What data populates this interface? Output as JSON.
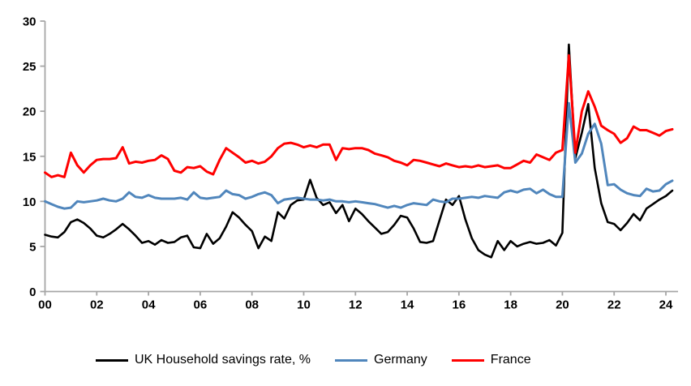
{
  "chart_data": {
    "type": "line",
    "x_axis": {
      "frequency": "quarterly",
      "start": "2000 Q1",
      "end": "2024 Q2",
      "points": 98,
      "tick_labels": [
        "00",
        "02",
        "04",
        "06",
        "08",
        "10",
        "12",
        "14",
        "16",
        "18",
        "20",
        "22",
        "24"
      ],
      "tick_every_points": 8
    },
    "ylim": [
      0,
      30
    ],
    "y_ticks": [
      "0",
      "5",
      "10",
      "15",
      "20",
      "25",
      "30"
    ],
    "grid": false,
    "legend_position": "bottom",
    "axis_color": "#a6a6a6",
    "tick_label_color": "#000000",
    "background_color": "#ffffff",
    "series": [
      {
        "name": "UK Household savings rate, %",
        "color": "#000000",
        "width": 2.6,
        "values": [
          6.3,
          6.1,
          6.0,
          6.6,
          7.7,
          8.0,
          7.6,
          7.0,
          6.2,
          6.0,
          6.4,
          6.9,
          7.5,
          6.9,
          6.2,
          5.4,
          5.6,
          5.2,
          5.7,
          5.4,
          5.5,
          6.0,
          6.2,
          4.9,
          4.8,
          6.4,
          5.3,
          5.9,
          7.2,
          8.8,
          8.2,
          7.4,
          6.7,
          4.8,
          6.1,
          5.6,
          8.8,
          8.1,
          9.6,
          10.1,
          10.2,
          12.4,
          10.4,
          9.6,
          9.9,
          8.7,
          9.6,
          7.8,
          9.2,
          8.6,
          7.8,
          7.1,
          6.4,
          6.6,
          7.4,
          8.4,
          8.2,
          7.0,
          5.5,
          5.4,
          5.6,
          7.9,
          10.2,
          9.6,
          10.6,
          8.0,
          5.9,
          4.6,
          4.1,
          3.8,
          5.6,
          4.6,
          5.6,
          5.0,
          5.3,
          5.5,
          5.3,
          5.4,
          5.7,
          5.1,
          6.5,
          27.4,
          14.8,
          17.6,
          20.8,
          13.7,
          9.8,
          7.7,
          7.5,
          6.8,
          7.6,
          8.6,
          7.9,
          9.2,
          9.7,
          10.2,
          10.6,
          11.2
        ]
      },
      {
        "name": "Germany",
        "color": "#5086bc",
        "width": 3,
        "values": [
          10.0,
          9.7,
          9.4,
          9.2,
          9.3,
          10.0,
          9.9,
          10.0,
          10.1,
          10.3,
          10.1,
          10.0,
          10.3,
          11.0,
          10.5,
          10.4,
          10.7,
          10.4,
          10.3,
          10.3,
          10.3,
          10.4,
          10.2,
          11.0,
          10.4,
          10.3,
          10.4,
          10.5,
          11.2,
          10.8,
          10.7,
          10.3,
          10.5,
          10.8,
          11.0,
          10.7,
          9.8,
          10.2,
          10.3,
          10.4,
          10.3,
          10.2,
          10.2,
          10.1,
          10.2,
          10.0,
          10.0,
          9.9,
          10.0,
          9.9,
          9.8,
          9.7,
          9.5,
          9.3,
          9.5,
          9.3,
          9.6,
          9.8,
          9.7,
          9.6,
          10.2,
          10.0,
          9.9,
          10.3,
          10.3,
          10.4,
          10.5,
          10.4,
          10.6,
          10.5,
          10.4,
          11.0,
          11.2,
          11.0,
          11.3,
          11.4,
          10.9,
          11.3,
          10.8,
          10.5,
          10.5,
          20.9,
          14.3,
          15.3,
          17.5,
          18.6,
          16.4,
          11.8,
          11.9,
          11.3,
          10.9,
          10.7,
          10.6,
          11.4,
          11.1,
          11.2,
          11.9,
          12.3
        ]
      },
      {
        "name": "France",
        "color": "#ff0000",
        "width": 3,
        "values": [
          13.2,
          12.7,
          12.9,
          12.7,
          15.4,
          14.0,
          13.2,
          14.0,
          14.6,
          14.7,
          14.7,
          14.8,
          16.0,
          14.2,
          14.4,
          14.3,
          14.5,
          14.6,
          15.1,
          14.7,
          13.4,
          13.2,
          13.8,
          13.7,
          13.9,
          13.3,
          13.0,
          14.6,
          15.9,
          15.4,
          14.9,
          14.3,
          14.5,
          14.2,
          14.4,
          15.0,
          15.9,
          16.4,
          16.5,
          16.3,
          16.0,
          16.2,
          16.0,
          16.3,
          16.3,
          14.6,
          15.9,
          15.8,
          15.9,
          15.9,
          15.7,
          15.3,
          15.1,
          14.9,
          14.5,
          14.3,
          14.0,
          14.6,
          14.5,
          14.3,
          14.1,
          13.9,
          14.2,
          14.0,
          13.8,
          13.9,
          13.8,
          14.0,
          13.8,
          13.9,
          14.0,
          13.7,
          13.7,
          14.1,
          14.5,
          14.3,
          15.2,
          14.9,
          14.6,
          15.4,
          15.7,
          26.2,
          15.4,
          20.0,
          22.2,
          20.5,
          18.4,
          17.9,
          17.5,
          16.5,
          17.0,
          18.3,
          17.9,
          17.9,
          17.6,
          17.3,
          17.8,
          18.0
        ]
      }
    ]
  }
}
